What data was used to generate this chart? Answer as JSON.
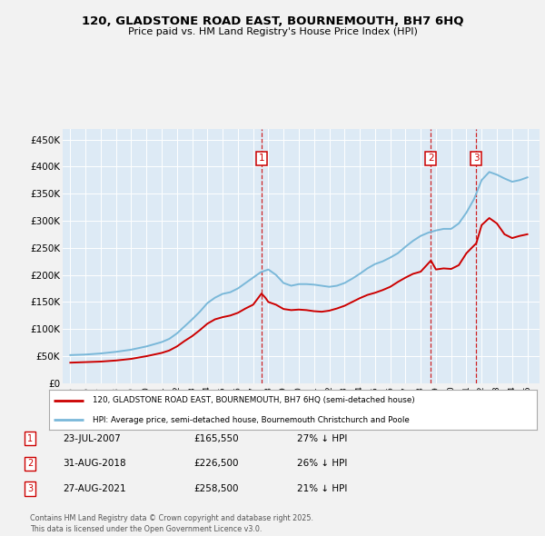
{
  "title": "120, GLADSTONE ROAD EAST, BOURNEMOUTH, BH7 6HQ",
  "subtitle": "Price paid vs. HM Land Registry's House Price Index (HPI)",
  "hpi_color": "#7ab8d9",
  "price_color": "#cc0000",
  "fig_bg_color": "#f2f2f2",
  "plot_bg_color": "#ddeaf5",
  "ylim": [
    0,
    470000
  ],
  "yticks": [
    0,
    50000,
    100000,
    150000,
    200000,
    250000,
    300000,
    350000,
    400000,
    450000
  ],
  "ytick_labels": [
    "£0",
    "£50K",
    "£100K",
    "£150K",
    "£200K",
    "£250K",
    "£300K",
    "£350K",
    "£400K",
    "£450K"
  ],
  "xlim_start": 1994.5,
  "xlim_end": 2025.8,
  "sale_dates": [
    "23-JUL-2007",
    "31-AUG-2018",
    "27-AUG-2021"
  ],
  "sale_years": [
    2007.55,
    2018.67,
    2021.65
  ],
  "sale_prices": [
    165550,
    226500,
    258500
  ],
  "sale_hpi_pct": [
    "27% ↓ HPI",
    "26% ↓ HPI",
    "21% ↓ HPI"
  ],
  "legend_label_red": "120, GLADSTONE ROAD EAST, BOURNEMOUTH, BH7 6HQ (semi-detached house)",
  "legend_label_blue": "HPI: Average price, semi-detached house, Bournemouth Christchurch and Poole",
  "footer": "Contains HM Land Registry data © Crown copyright and database right 2025.\nThis data is licensed under the Open Government Licence v3.0.",
  "hpi_x": [
    1995,
    1995.5,
    1996,
    1996.5,
    1997,
    1997.5,
    1998,
    1998.5,
    1999,
    1999.5,
    2000,
    2000.5,
    2001,
    2001.5,
    2002,
    2002.5,
    2003,
    2003.5,
    2004,
    2004.5,
    2005,
    2005.5,
    2006,
    2006.5,
    2007,
    2007.5,
    2008,
    2008.5,
    2009,
    2009.5,
    2010,
    2010.5,
    2011,
    2011.5,
    2012,
    2012.5,
    2013,
    2013.5,
    2014,
    2014.5,
    2015,
    2015.5,
    2016,
    2016.5,
    2017,
    2017.5,
    2018,
    2018.5,
    2019,
    2019.5,
    2020,
    2020.5,
    2021,
    2021.5,
    2022,
    2022.5,
    2023,
    2023.5,
    2024,
    2024.5,
    2025
  ],
  "hpi_y": [
    52000,
    52500,
    53000,
    54000,
    55000,
    56500,
    58000,
    60000,
    62000,
    65000,
    68000,
    72000,
    76000,
    82000,
    92000,
    105000,
    118000,
    132000,
    148000,
    158000,
    165000,
    168000,
    175000,
    185000,
    195000,
    205000,
    210000,
    200000,
    185000,
    180000,
    183000,
    183000,
    182000,
    180000,
    178000,
    180000,
    185000,
    193000,
    202000,
    212000,
    220000,
    225000,
    232000,
    240000,
    252000,
    263000,
    272000,
    278000,
    282000,
    285000,
    285000,
    295000,
    315000,
    340000,
    375000,
    390000,
    385000,
    378000,
    372000,
    375000,
    380000
  ],
  "price_x": [
    1995,
    1995.5,
    1996,
    1996.5,
    1997,
    1997.5,
    1998,
    1998.5,
    1999,
    1999.5,
    2000,
    2000.5,
    2001,
    2001.5,
    2002,
    2002.5,
    2003,
    2003.5,
    2004,
    2004.5,
    2005,
    2005.5,
    2006,
    2006.5,
    2007,
    2007.55,
    2007.8,
    2008,
    2008.5,
    2009,
    2009.5,
    2010,
    2010.5,
    2011,
    2011.5,
    2012,
    2012.5,
    2013,
    2013.5,
    2014,
    2014.5,
    2015,
    2015.5,
    2016,
    2016.5,
    2017,
    2017.5,
    2018,
    2018.67,
    2019,
    2019.5,
    2020,
    2020.5,
    2021,
    2021.65,
    2022,
    2022.5,
    2023,
    2023.5,
    2024,
    2024.5,
    2025
  ],
  "price_y": [
    38000,
    38500,
    39000,
    39500,
    40000,
    41000,
    42000,
    43500,
    45000,
    47500,
    50000,
    53000,
    56000,
    60500,
    68000,
    78000,
    87000,
    98000,
    110000,
    118000,
    122000,
    125000,
    130000,
    138000,
    145000,
    165550,
    158000,
    150000,
    145000,
    137000,
    135000,
    136000,
    135000,
    133000,
    132000,
    134000,
    138000,
    143000,
    150000,
    157000,
    163000,
    167000,
    172000,
    178000,
    187000,
    195000,
    202000,
    206000,
    226500,
    210000,
    212000,
    211000,
    218000,
    240000,
    258500,
    292000,
    305000,
    295000,
    275000,
    268000,
    272000,
    275000
  ]
}
